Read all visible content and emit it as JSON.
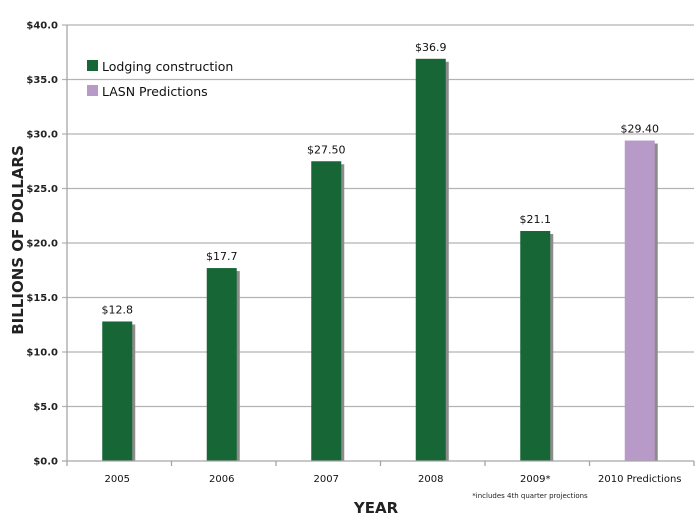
{
  "chart_data": {
    "type": "bar",
    "title": "",
    "xlabel": "YEAR",
    "ylabel": "BILLIONS OF DOLLARS",
    "ylim": [
      0,
      40
    ],
    "y_ticks": [
      0,
      5,
      10,
      15,
      20,
      25,
      30,
      35,
      40
    ],
    "y_tick_labels": [
      "$0.0",
      "$5.0",
      "$10.0",
      "$15.0",
      "$20.0",
      "$25.0",
      "$30.0",
      "$35.0",
      "$40.0"
    ],
    "grid": true,
    "categories": [
      "2005",
      "2006",
      "2007",
      "2008",
      "2009*",
      "2010 Predictions"
    ],
    "values": [
      12.8,
      17.7,
      27.5,
      36.9,
      21.1,
      29.4
    ],
    "data_labels": [
      "$12.8",
      "$17.7",
      "$27.50",
      "$36.9",
      "$21.1",
      "$29.40"
    ],
    "series_of_bar": [
      "Lodging construction",
      "Lodging construction",
      "Lodging construction",
      "Lodging construction",
      "Lodging construction",
      "LASN Predictions"
    ],
    "series": [
      {
        "name": "Lodging construction",
        "color": "#176636",
        "values": [
          12.8,
          17.7,
          27.5,
          36.9,
          21.1,
          null
        ]
      },
      {
        "name": "LASN Predictions",
        "color": "#b89ac9",
        "values": [
          null,
          null,
          null,
          null,
          null,
          29.4
        ]
      }
    ],
    "legend": {
      "placement": "top-left",
      "entries": [
        {
          "label": "Lodging construction",
          "color": "#176636"
        },
        {
          "label": "LASN Predictions",
          "color": "#b89ac9"
        }
      ]
    },
    "footnote": "*includes 4th quarter projections"
  },
  "colors": {
    "grid": "#b3b3b3",
    "axis": "#a6a6a6",
    "shadow": "#8c8c8c"
  }
}
